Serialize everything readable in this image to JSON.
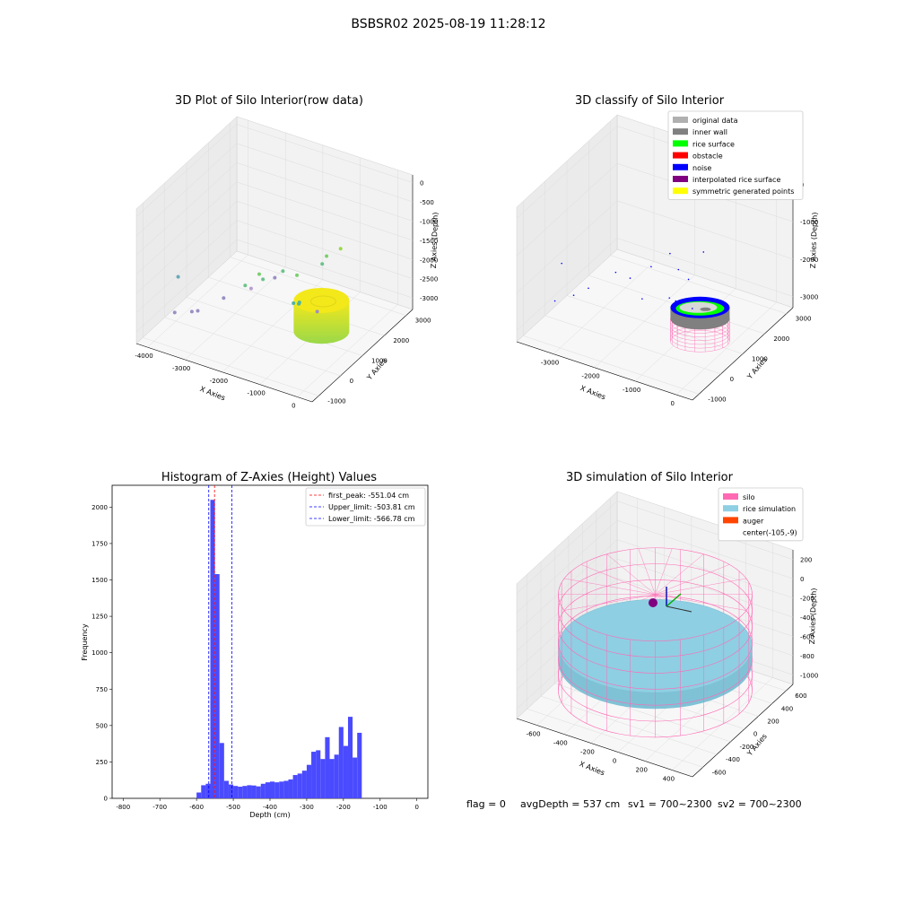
{
  "figure": {
    "suptitle": "BSBSR02 2025-08-19 11:28:12",
    "footer": {
      "flag": "flag = 0",
      "avg_depth": "avgDepth = 537 cm",
      "sv1": "sv1 = 700~2300",
      "sv2": "sv2 = 700~2300"
    }
  },
  "colors": {
    "rice_gradient_top": "#f3e81a",
    "rice_gradient_bottom": "#9ad84a",
    "original_data": "#b0b0b0",
    "inner_wall": "#808080",
    "rice_surface": "#00ff00",
    "obstacle": "#ff0000",
    "noise": "#0000ff",
    "interpolated": "#800080",
    "symmetric": "#ffff00",
    "silo": "#ff69b4",
    "rice_sim": "#8ecfe3",
    "auger": "#ff4500",
    "hist_bar": "#4a4aff",
    "peak_line": "#ff0000",
    "limit_line": "#0000ff"
  },
  "chart_data": [
    {
      "type": "scatter3d",
      "title": "3D Plot of Silo Interior(row data)",
      "xlabel": "X Axies",
      "ylabel": "Y Axies",
      "zlabel": "Z Axies (Depth)",
      "xticks": [
        "-4000",
        "-3000",
        "-2000",
        "-1000",
        "0"
      ],
      "yticks": [
        "-1000",
        "0",
        "1000",
        "2000",
        "3000"
      ],
      "zticks": [
        "0",
        "-500",
        "-1000",
        "-1500",
        "-2000",
        "-2500",
        "-3000"
      ],
      "xlim": [
        -4300,
        400
      ],
      "ylim": [
        -1300,
        3300
      ],
      "zlim": [
        -3300,
        200
      ],
      "points": [
        {
          "x": -4000,
          "y": 100,
          "z": -2200,
          "c": "#6aa8b8"
        },
        {
          "x": -3800,
          "y": -400,
          "z": -2800,
          "c": "#9b8fc4"
        },
        {
          "x": -3400,
          "y": -300,
          "z": -2700,
          "c": "#9b8fc4"
        },
        {
          "x": -3300,
          "y": -200,
          "z": -2700,
          "c": "#9b8fc4"
        },
        {
          "x": -2900,
          "y": 300,
          "z": -2500,
          "c": "#9b8fc4"
        },
        {
          "x": -2500,
          "y": 600,
          "z": -2200,
          "c": "#6cc38a"
        },
        {
          "x": -2400,
          "y": 700,
          "z": -2300,
          "c": "#b79fd0"
        },
        {
          "x": -2300,
          "y": 900,
          "z": -2000,
          "c": "#7ccf6f"
        },
        {
          "x": -2200,
          "y": 900,
          "z": -2100,
          "c": "#6cc38a"
        },
        {
          "x": -2000,
          "y": 1100,
          "z": -2100,
          "c": "#9b8fc4"
        },
        {
          "x": -1900,
          "y": 1300,
          "z": -2000,
          "c": "#6cc38a"
        },
        {
          "x": -1700,
          "y": 1600,
          "z": -2200,
          "c": "#7ccf6f"
        },
        {
          "x": -1500,
          "y": 1100,
          "z": -2600,
          "c": "#4fb3a0"
        },
        {
          "x": -1400,
          "y": 1200,
          "z": -2600,
          "c": "#4fb3a0"
        },
        {
          "x": -1300,
          "y": 1000,
          "z": -2500,
          "c": "#4fb3a0"
        },
        {
          "x": -1200,
          "y": 1900,
          "z": -1900,
          "c": "#6cc38a"
        },
        {
          "x": -1200,
          "y": 2100,
          "z": -1800,
          "c": "#7ccf6f"
        },
        {
          "x": -1100,
          "y": 1500,
          "z": -2900,
          "c": "#9b8fc4"
        },
        {
          "x": -1000,
          "y": 2400,
          "z": -1700,
          "c": "#9ad84a"
        }
      ],
      "cylinder": {
        "cx": -105,
        "cy": -9,
        "r": 650,
        "z_top": -1500,
        "z_bottom": -2300
      }
    },
    {
      "type": "scatter3d",
      "title": "3D classify of Silo Interior",
      "xlabel": "X Axies",
      "ylabel": "Y Axies",
      "zlabel": "Z Axies (Depth)",
      "xticks": [
        "-3000",
        "-2000",
        "-1000",
        "0"
      ],
      "yticks": [
        "-1000",
        "0",
        "1000",
        "2000",
        "3000"
      ],
      "zticks": [
        "0",
        "-1000",
        "-2000",
        "-3000"
      ],
      "xlim": [
        -3900,
        400
      ],
      "ylim": [
        -1300,
        3300
      ],
      "zlim": [
        -3300,
        300
      ],
      "legend": [
        {
          "label": "original data",
          "key": "original_data"
        },
        {
          "label": "inner wall",
          "key": "inner_wall"
        },
        {
          "label": "rice surface",
          "key": "rice_surface"
        },
        {
          "label": "obstacle",
          "key": "obstacle"
        },
        {
          "label": "noise",
          "key": "noise"
        },
        {
          "label": "interpolated rice surface",
          "key": "interpolated"
        },
        {
          "label": "symmetric generated points",
          "key": "symmetric"
        }
      ],
      "noise_points": [
        {
          "x": -3600,
          "y": 200,
          "z": -1900
        },
        {
          "x": -3500,
          "y": -300,
          "z": -2600
        },
        {
          "x": -3200,
          "y": 0,
          "z": -2500
        },
        {
          "x": -3000,
          "y": 300,
          "z": -2400
        },
        {
          "x": -2600,
          "y": 800,
          "z": -2100
        },
        {
          "x": -2300,
          "y": 900,
          "z": -2200
        },
        {
          "x": -2000,
          "y": 1300,
          "z": -2000
        },
        {
          "x": -1900,
          "y": 700,
          "z": -2500
        },
        {
          "x": -1700,
          "y": 1600,
          "z": -1700
        },
        {
          "x": -1600,
          "y": 1800,
          "z": -2200
        },
        {
          "x": -1500,
          "y": 1200,
          "z": -2600
        },
        {
          "x": -1400,
          "y": 1300,
          "z": -2700
        },
        {
          "x": -1300,
          "y": 1700,
          "z": -2300
        },
        {
          "x": -1200,
          "y": 2200,
          "z": -1800
        },
        {
          "x": -1100,
          "y": 1500,
          "z": -2900
        }
      ],
      "cylinder": {
        "cx": -105,
        "cy": -9,
        "r": 650,
        "z_top": -1700,
        "z_bottom": -2000,
        "z_sim_bottom": -2600
      }
    },
    {
      "type": "bar",
      "title": "Histogram of Z-Axies (Height) Values",
      "xlabel": "Depth (cm)",
      "ylabel": "Frequency",
      "xlim": [
        -830,
        30
      ],
      "ylim": [
        0,
        2150
      ],
      "xticks": [
        -800,
        -700,
        -600,
        -500,
        -400,
        -300,
        -200,
        -100,
        0
      ],
      "yticks": [
        0,
        250,
        500,
        750,
        1000,
        1250,
        1500,
        1750,
        2000
      ],
      "bin_start": -600,
      "bin_width": 12.5,
      "values": [
        40,
        90,
        100,
        2050,
        1540,
        380,
        120,
        95,
        85,
        80,
        85,
        90,
        88,
        82,
        100,
        110,
        115,
        110,
        115,
        120,
        130,
        160,
        170,
        190,
        230,
        320,
        330,
        270,
        420,
        270,
        300,
        490,
        360,
        560,
        280,
        450
      ],
      "vlines": [
        {
          "label": "first_peak: -551.04 cm",
          "x": -551.04,
          "key": "peak_line"
        },
        {
          "label": "Upper_limit: -503.81 cm",
          "x": -503.81,
          "key": "limit_line"
        },
        {
          "label": "Lower_limit: -566.78 cm",
          "x": -566.78,
          "key": "limit_line"
        }
      ]
    },
    {
      "type": "surface3d",
      "title": "3D simulation of Silo Interior",
      "xlabel": "X Axies",
      "ylabel": "Y Axies",
      "zlabel": "Z Axies (Depth)",
      "xticks": [
        "-600",
        "-400",
        "-200",
        "0",
        "200",
        "400"
      ],
      "yticks": [
        "-600",
        "-400",
        "-200",
        "0",
        "200",
        "400",
        "600"
      ],
      "zticks": [
        "200",
        "0",
        "-200",
        "-400",
        "-600",
        "-800",
        "-1000"
      ],
      "legend": [
        {
          "label": "silo",
          "key": "silo"
        },
        {
          "label": "rice simulation",
          "key": "rice_sim"
        },
        {
          "label": "auger",
          "key": "auger"
        },
        {
          "label": "center(-105,-9)",
          "key": ""
        }
      ],
      "silo_radius": 650,
      "rice_depth": -537,
      "silo_top": 0,
      "silo_bottom": -1000
    }
  ]
}
